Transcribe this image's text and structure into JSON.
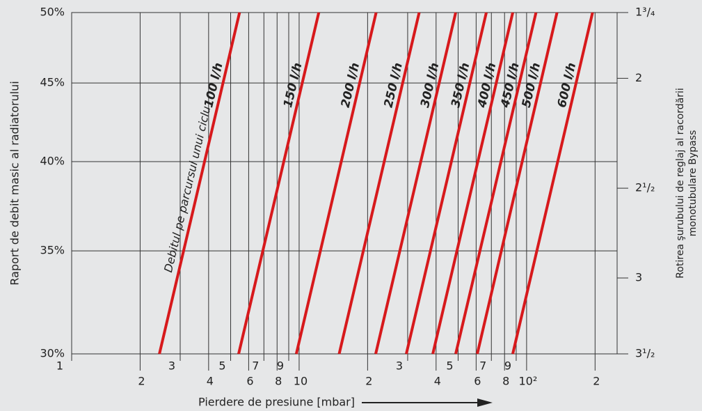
{
  "chart_data": {
    "type": "line",
    "x_label": "Pierdere de presiune [mbar]",
    "y_label": "Raport de debit masic al radiatorului",
    "y2_label": [
      "Rotirea şurubului de reglaj al racordării",
      "monotubulare Bypass"
    ],
    "annotation": "Debitul pe parcursul unui ciclu",
    "x_scale": "log",
    "y_scale": "log",
    "y2_scale": "log",
    "grid": true,
    "xlim": [
      1,
      250
    ],
    "ylim": [
      30,
      50
    ],
    "y2lim": [
      3.5,
      1.75
    ],
    "xticks": [
      1,
      2,
      3,
      4,
      5,
      6,
      7,
      8,
      9,
      10,
      {
        "value": 20,
        "label": "2"
      },
      {
        "value": 30,
        "label": "3"
      },
      {
        "value": 40,
        "label": "4"
      },
      {
        "value": 50,
        "label": "5"
      },
      {
        "value": 60,
        "label": "6"
      },
      {
        "value": 70,
        "label": "7"
      },
      {
        "value": 80,
        "label": "8"
      },
      {
        "value": 90,
        "label": "9"
      },
      {
        "value": 100,
        "label": "10²"
      },
      {
        "value": 200,
        "label": "2"
      }
    ],
    "yticks": [
      {
        "value": 30,
        "label": "30%"
      },
      {
        "value": 35,
        "label": "35%"
      },
      {
        "value": 40,
        "label": "40%"
      },
      {
        "value": 45,
        "label": "45%"
      },
      {
        "value": 50,
        "label": "50%"
      }
    ],
    "y2ticks": [
      {
        "value": 3.5,
        "label": "3¹/₂"
      },
      3,
      {
        "value": 2.5,
        "label": "2¹/₂"
      },
      2,
      {
        "value": 1.75,
        "label": "1³/₄"
      }
    ],
    "series": [
      {
        "name": "100 l/h",
        "color": "#d7191c",
        "x": [
          2.43,
          5.47
        ],
        "values": [
          30,
          50
        ]
      },
      {
        "name": "150 l/h",
        "color": "#d7191c",
        "x": [
          5.42,
          12.2
        ],
        "values": [
          30,
          50
        ]
      },
      {
        "name": "200 l/h",
        "color": "#d7191c",
        "x": [
          9.72,
          21.8
        ],
        "values": [
          30,
          50
        ]
      },
      {
        "name": "250 l/h",
        "color": "#d7191c",
        "x": [
          15.0,
          33.7
        ],
        "values": [
          30,
          50
        ]
      },
      {
        "name": "300 l/h",
        "color": "#d7191c",
        "x": [
          21.7,
          48.8
        ],
        "values": [
          30,
          50
        ]
      },
      {
        "name": "350 l/h",
        "color": "#d7191c",
        "x": [
          29.6,
          66.5
        ],
        "values": [
          30,
          50
        ]
      },
      {
        "name": "400 l/h",
        "color": "#d7191c",
        "x": [
          38.7,
          86.9
        ],
        "values": [
          30,
          50
        ]
      },
      {
        "name": "450 l/h",
        "color": "#d7191c",
        "x": [
          48.8,
          110
        ],
        "values": [
          30,
          50
        ]
      },
      {
        "name": "500 l/h",
        "color": "#d7191c",
        "x": [
          60.7,
          136
        ],
        "values": [
          30,
          50
        ]
      },
      {
        "name": "600 l/h",
        "color": "#d7191c",
        "x": [
          86.9,
          195
        ],
        "values": [
          30,
          50
        ]
      }
    ]
  }
}
